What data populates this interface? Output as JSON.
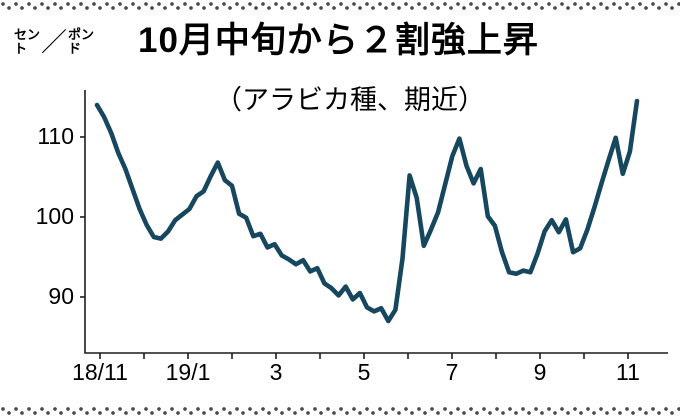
{
  "header": {
    "title": "10月中旬から２割強上昇",
    "subtitle": "（アラビカ種、期近）",
    "y_unit_first_top": "セン",
    "y_unit_first_bottom": "ト",
    "y_unit_slash": "／",
    "y_unit_second_top": "ポン",
    "y_unit_second_bottom": "ド"
  },
  "chart_data": {
    "type": "line",
    "title": "10月中旬から２割強上昇",
    "subtitle": "（アラビカ種、期近）",
    "ylabel": "セント／ポンド",
    "xlabel": "",
    "y_ticks": [
      110,
      100,
      90
    ],
    "x_ticks": [
      "18/11",
      "19/1",
      "3",
      "5",
      "7",
      "9",
      "11"
    ],
    "x_range_note": "2018/11 - 2019/11, weekly",
    "ylim": [
      83,
      117
    ],
    "grid": false,
    "legend": "none",
    "line_color": "#17475f",
    "values": [
      114,
      112.5,
      110.5,
      108,
      106,
      103.5,
      101,
      99,
      97.5,
      97.3,
      98.2,
      99.6,
      100.3,
      101,
      102.6,
      103.2,
      105.1,
      106.8,
      104.6,
      103.9,
      100.4,
      99.9,
      97.6,
      97.9,
      96.2,
      96.6,
      95.2,
      94.7,
      94.1,
      94.6,
      93.2,
      93.6,
      91.7,
      91.1,
      90.2,
      91.3,
      89.7,
      90.5,
      88.7,
      88.2,
      88.6,
      87.0,
      88.4,
      94.8,
      105.2,
      102.4,
      96.4,
      98.4,
      100.6,
      104.1,
      107.6,
      109.8,
      106.4,
      104.2,
      106.0,
      100.1,
      98.9,
      95.6,
      93.1,
      92.9,
      93.3,
      93.1,
      95.4,
      98.2,
      99.6,
      98.1,
      99.7,
      95.6,
      96.1,
      98.4,
      101.2,
      104.2,
      107.1,
      109.9,
      105.4,
      108.2,
      114.5
    ]
  }
}
